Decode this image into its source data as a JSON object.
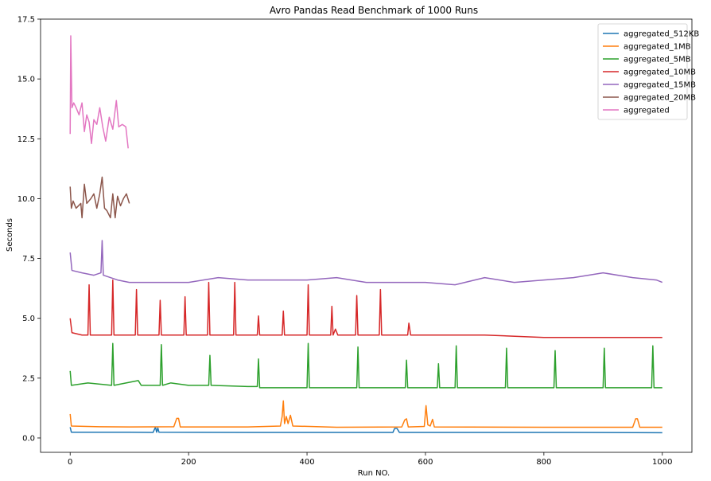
{
  "chart_data": {
    "type": "line",
    "title": "Avro Pandas Read Benchmark of 1000 Runs",
    "xlabel": "Run NO.",
    "ylabel": "Seconds",
    "xlim": [
      -50,
      1050
    ],
    "ylim": [
      -0.6,
      17.5
    ],
    "xticks": [
      0,
      200,
      400,
      600,
      800,
      1000
    ],
    "yticks": [
      0.0,
      2.5,
      5.0,
      7.5,
      10.0,
      12.5,
      15.0,
      17.5
    ],
    "xtick_labels": [
      "0",
      "200",
      "400",
      "600",
      "800",
      "1000"
    ],
    "ytick_labels": [
      "0.0",
      "2.5",
      "5.0",
      "7.5",
      "10.0",
      "12.5",
      "15.0",
      "17.5"
    ],
    "grid": false,
    "legend_position": "top-right",
    "series": [
      {
        "name": "aggregated_512KB",
        "color": "#1f77b4",
        "points": [
          [
            0,
            0.45
          ],
          [
            2,
            0.24
          ],
          [
            100,
            0.24
          ],
          [
            140,
            0.23
          ],
          [
            144,
            0.45
          ],
          [
            146,
            0.24
          ],
          [
            148,
            0.42
          ],
          [
            150,
            0.24
          ],
          [
            300,
            0.23
          ],
          [
            400,
            0.23
          ],
          [
            545,
            0.23
          ],
          [
            548,
            0.4
          ],
          [
            552,
            0.4
          ],
          [
            556,
            0.23
          ],
          [
            700,
            0.23
          ],
          [
            850,
            0.23
          ],
          [
            1000,
            0.22
          ]
        ]
      },
      {
        "name": "aggregated_1MB",
        "color": "#ff7f0e",
        "points": [
          [
            0,
            1.0
          ],
          [
            2,
            0.5
          ],
          [
            50,
            0.47
          ],
          [
            100,
            0.46
          ],
          [
            175,
            0.47
          ],
          [
            180,
            0.82
          ],
          [
            183,
            0.82
          ],
          [
            186,
            0.46
          ],
          [
            300,
            0.46
          ],
          [
            355,
            0.5
          ],
          [
            358,
            0.9
          ],
          [
            360,
            1.55
          ],
          [
            362,
            0.6
          ],
          [
            365,
            0.9
          ],
          [
            368,
            0.6
          ],
          [
            372,
            0.95
          ],
          [
            376,
            0.5
          ],
          [
            450,
            0.45
          ],
          [
            560,
            0.46
          ],
          [
            565,
            0.75
          ],
          [
            568,
            0.8
          ],
          [
            571,
            0.46
          ],
          [
            598,
            0.48
          ],
          [
            601,
            1.35
          ],
          [
            604,
            0.55
          ],
          [
            608,
            0.5
          ],
          [
            612,
            0.78
          ],
          [
            615,
            0.46
          ],
          [
            800,
            0.45
          ],
          [
            950,
            0.45
          ],
          [
            955,
            0.8
          ],
          [
            958,
            0.8
          ],
          [
            962,
            0.45
          ],
          [
            1000,
            0.45
          ]
        ]
      },
      {
        "name": "aggregated_5MB",
        "color": "#2ca02c",
        "points": [
          [
            0,
            2.8
          ],
          [
            2,
            2.2
          ],
          [
            30,
            2.3
          ],
          [
            70,
            2.2
          ],
          [
            72,
            3.95
          ],
          [
            74,
            2.2
          ],
          [
            115,
            2.4
          ],
          [
            120,
            2.2
          ],
          [
            152,
            2.2
          ],
          [
            154,
            3.9
          ],
          [
            156,
            2.2
          ],
          [
            170,
            2.3
          ],
          [
            200,
            2.2
          ],
          [
            234,
            2.2
          ],
          [
            236,
            3.45
          ],
          [
            238,
            2.2
          ],
          [
            300,
            2.15
          ],
          [
            316,
            2.15
          ],
          [
            318,
            3.3
          ],
          [
            320,
            2.1
          ],
          [
            400,
            2.1
          ],
          [
            402,
            3.95
          ],
          [
            404,
            2.1
          ],
          [
            484,
            2.1
          ],
          [
            486,
            3.8
          ],
          [
            488,
            2.1
          ],
          [
            566,
            2.1
          ],
          [
            568,
            3.25
          ],
          [
            570,
            2.1
          ],
          [
            620,
            2.1
          ],
          [
            622,
            3.1
          ],
          [
            624,
            2.1
          ],
          [
            650,
            2.1
          ],
          [
            652,
            3.85
          ],
          [
            654,
            2.1
          ],
          [
            735,
            2.1
          ],
          [
            737,
            3.75
          ],
          [
            739,
            2.1
          ],
          [
            817,
            2.1
          ],
          [
            819,
            3.65
          ],
          [
            821,
            2.1
          ],
          [
            900,
            2.1
          ],
          [
            902,
            3.75
          ],
          [
            904,
            2.1
          ],
          [
            982,
            2.1
          ],
          [
            984,
            3.85
          ],
          [
            986,
            2.1
          ],
          [
            1000,
            2.1
          ]
        ]
      },
      {
        "name": "aggregated_10MB",
        "color": "#d62728",
        "points": [
          [
            0,
            5.0
          ],
          [
            3,
            4.4
          ],
          [
            20,
            4.3
          ],
          [
            30,
            4.3
          ],
          [
            32,
            6.4
          ],
          [
            34,
            4.3
          ],
          [
            70,
            4.3
          ],
          [
            72,
            6.6
          ],
          [
            74,
            4.3
          ],
          [
            110,
            4.3
          ],
          [
            112,
            6.2
          ],
          [
            114,
            4.3
          ],
          [
            150,
            4.3
          ],
          [
            152,
            5.75
          ],
          [
            154,
            4.3
          ],
          [
            192,
            4.3
          ],
          [
            194,
            5.9
          ],
          [
            196,
            4.3
          ],
          [
            232,
            4.3
          ],
          [
            234,
            6.5
          ],
          [
            236,
            4.3
          ],
          [
            276,
            4.3
          ],
          [
            278,
            6.5
          ],
          [
            280,
            4.3
          ],
          [
            316,
            4.3
          ],
          [
            318,
            5.1
          ],
          [
            320,
            4.3
          ],
          [
            358,
            4.3
          ],
          [
            360,
            5.3
          ],
          [
            362,
            4.3
          ],
          [
            400,
            4.3
          ],
          [
            402,
            6.4
          ],
          [
            404,
            4.3
          ],
          [
            440,
            4.3
          ],
          [
            442,
            5.5
          ],
          [
            444,
            4.3
          ],
          [
            448,
            4.55
          ],
          [
            452,
            4.3
          ],
          [
            482,
            4.3
          ],
          [
            484,
            5.95
          ],
          [
            486,
            4.3
          ],
          [
            522,
            4.3
          ],
          [
            524,
            6.2
          ],
          [
            526,
            4.3
          ],
          [
            570,
            4.3
          ],
          [
            572,
            4.8
          ],
          [
            575,
            4.3
          ],
          [
            700,
            4.3
          ],
          [
            800,
            4.2
          ],
          [
            900,
            4.2
          ],
          [
            1000,
            4.2
          ]
        ]
      },
      {
        "name": "aggregated_15MB",
        "color": "#9467bd",
        "points": [
          [
            0,
            7.75
          ],
          [
            3,
            7.0
          ],
          [
            20,
            6.9
          ],
          [
            40,
            6.8
          ],
          [
            52,
            6.9
          ],
          [
            54,
            8.25
          ],
          [
            56,
            6.8
          ],
          [
            80,
            6.6
          ],
          [
            100,
            6.5
          ],
          [
            150,
            6.5
          ],
          [
            200,
            6.5
          ],
          [
            250,
            6.7
          ],
          [
            300,
            6.6
          ],
          [
            350,
            6.6
          ],
          [
            400,
            6.6
          ],
          [
            450,
            6.7
          ],
          [
            500,
            6.5
          ],
          [
            550,
            6.5
          ],
          [
            600,
            6.5
          ],
          [
            650,
            6.4
          ],
          [
            700,
            6.7
          ],
          [
            750,
            6.5
          ],
          [
            800,
            6.6
          ],
          [
            850,
            6.7
          ],
          [
            900,
            6.9
          ],
          [
            950,
            6.7
          ],
          [
            990,
            6.6
          ],
          [
            1000,
            6.5
          ]
        ]
      },
      {
        "name": "aggregated_20MB",
        "color": "#8c564b",
        "points": [
          [
            0,
            10.5
          ],
          [
            2,
            9.6
          ],
          [
            5,
            9.9
          ],
          [
            10,
            9.6
          ],
          [
            18,
            9.8
          ],
          [
            20,
            9.2
          ],
          [
            24,
            10.6
          ],
          [
            28,
            9.8
          ],
          [
            35,
            10.0
          ],
          [
            40,
            10.2
          ],
          [
            45,
            9.6
          ],
          [
            50,
            10.2
          ],
          [
            54,
            10.9
          ],
          [
            58,
            9.6
          ],
          [
            62,
            9.5
          ],
          [
            68,
            9.2
          ],
          [
            72,
            10.2
          ],
          [
            76,
            9.2
          ],
          [
            80,
            10.1
          ],
          [
            85,
            9.7
          ],
          [
            90,
            10.0
          ],
          [
            95,
            10.2
          ],
          [
            100,
            9.8
          ]
        ]
      },
      {
        "name": "aggregated",
        "color": "#e377c2",
        "points": [
          [
            0,
            12.7
          ],
          [
            1,
            16.8
          ],
          [
            3,
            13.8
          ],
          [
            6,
            14.0
          ],
          [
            10,
            13.8
          ],
          [
            15,
            13.5
          ],
          [
            20,
            14.0
          ],
          [
            24,
            12.8
          ],
          [
            28,
            13.5
          ],
          [
            32,
            13.2
          ],
          [
            36,
            12.3
          ],
          [
            40,
            13.3
          ],
          [
            45,
            13.1
          ],
          [
            50,
            13.8
          ],
          [
            55,
            13.0
          ],
          [
            60,
            12.4
          ],
          [
            66,
            13.4
          ],
          [
            72,
            12.9
          ],
          [
            78,
            14.1
          ],
          [
            82,
            13.0
          ],
          [
            88,
            13.1
          ],
          [
            94,
            13.0
          ],
          [
            98,
            12.1
          ]
        ]
      }
    ]
  }
}
